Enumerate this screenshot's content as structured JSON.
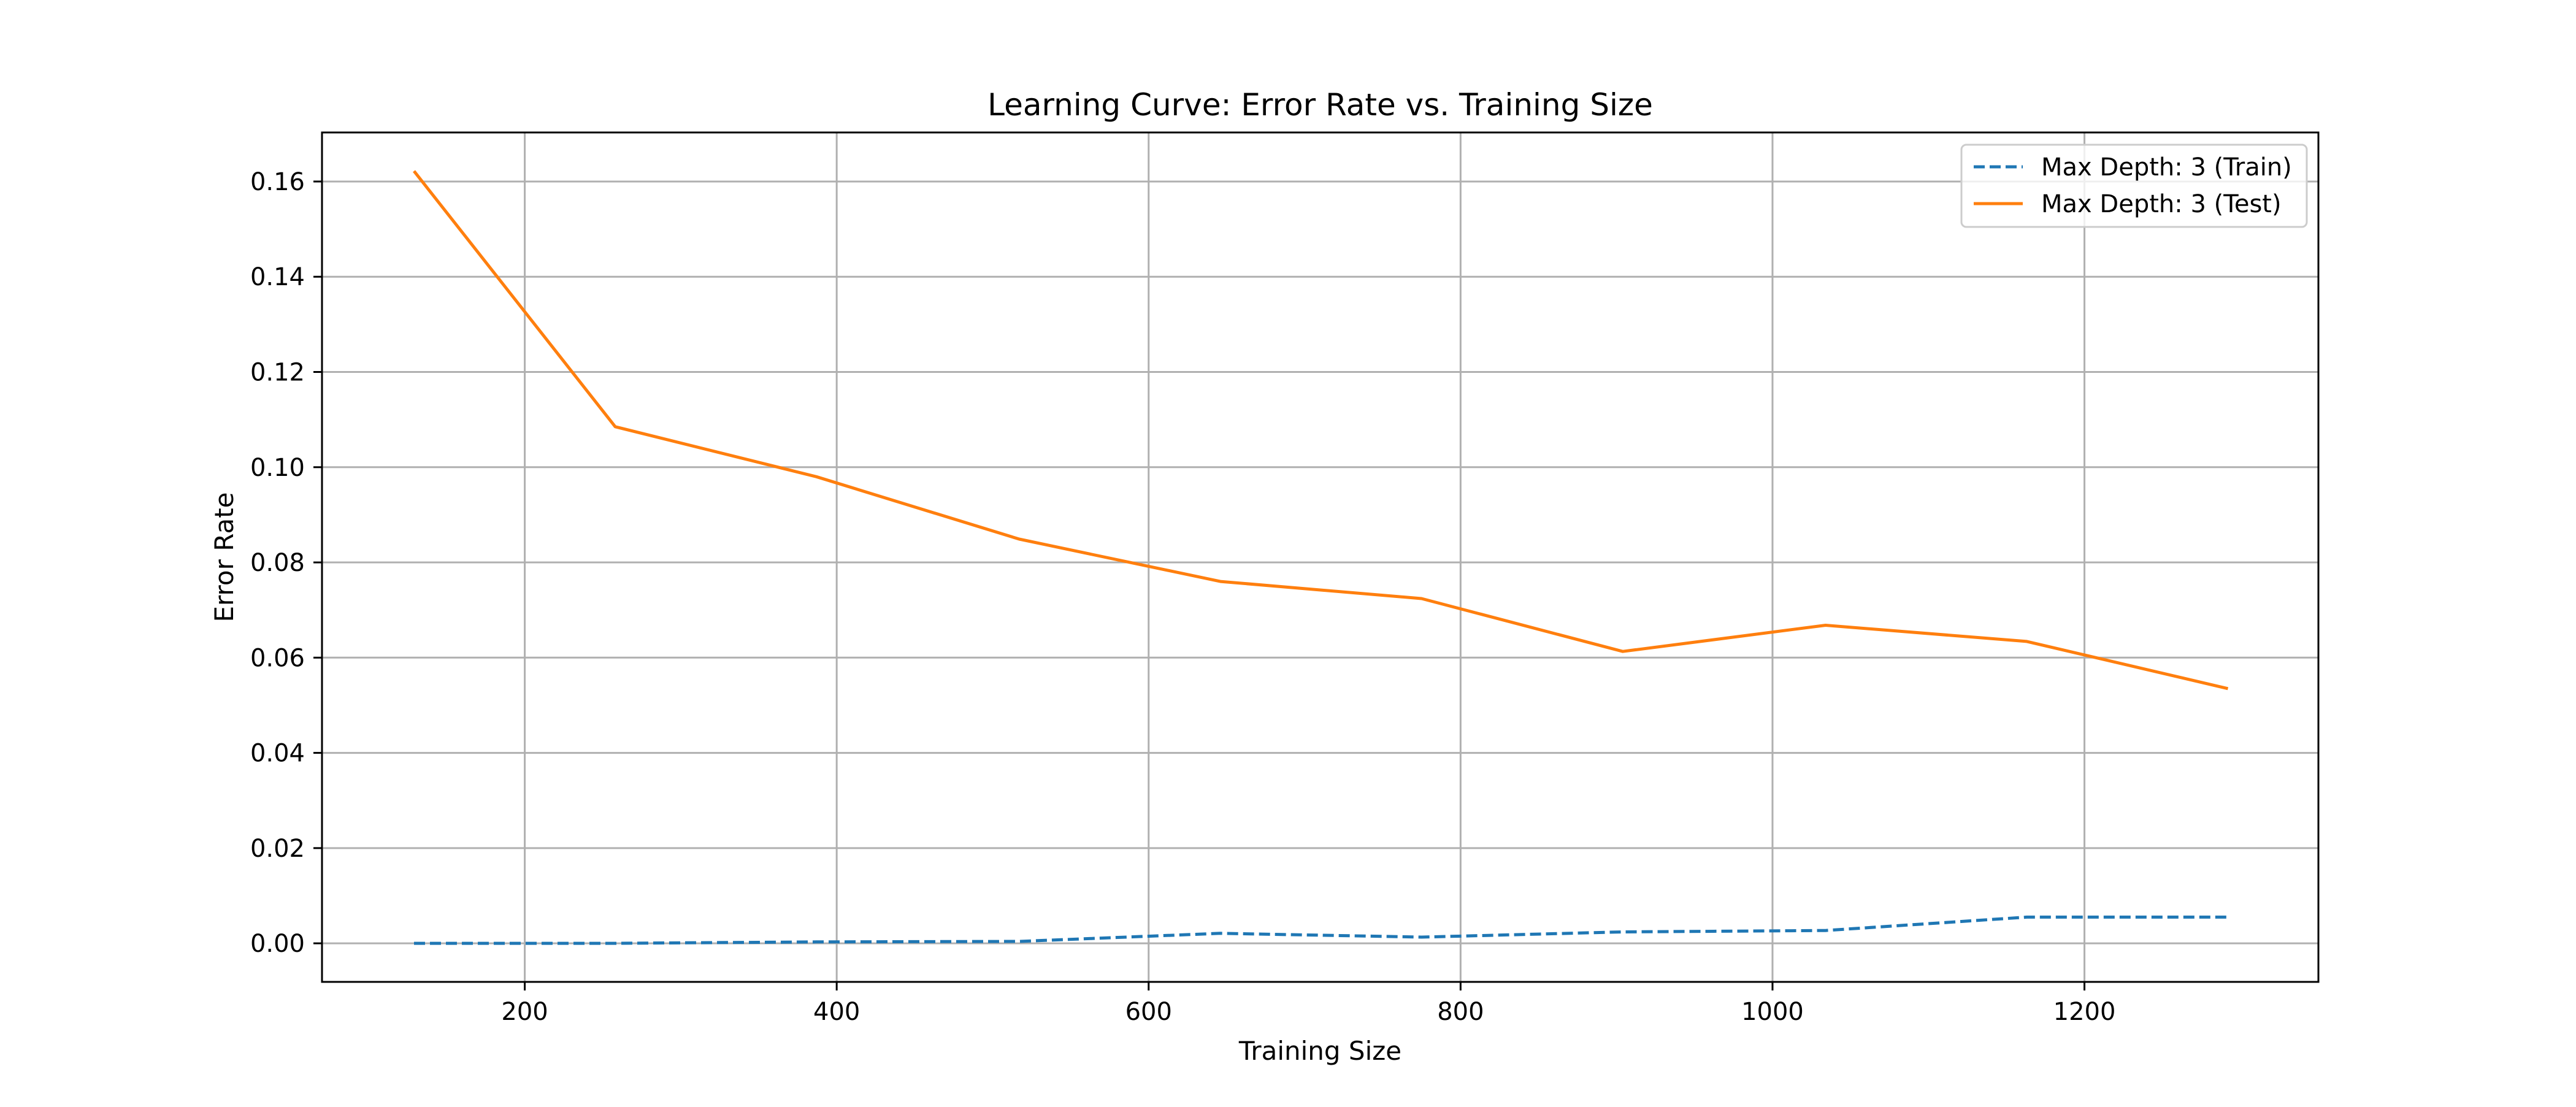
{
  "chart_data": {
    "type": "line",
    "title": "Learning Curve: Error Rate vs. Training Size",
    "xlabel": "Training Size",
    "ylabel": "Error Rate",
    "x": [
      129,
      258,
      387,
      517,
      646,
      775,
      904,
      1034,
      1163,
      1292
    ],
    "series": [
      {
        "name": "Max Depth: 3 (Train)",
        "values": [
          0.0,
          0.0,
          0.0003,
          0.0004,
          0.0021,
          0.0013,
          0.0024,
          0.0027,
          0.0055,
          0.0055
        ],
        "color": "#1f77b4",
        "style": "dashed"
      },
      {
        "name": "Max Depth: 3 (Test)",
        "values": [
          0.1622,
          0.1085,
          0.098,
          0.0849,
          0.076,
          0.0724,
          0.0613,
          0.0668,
          0.0634,
          0.0535
        ],
        "color": "#ff7f0e",
        "style": "solid"
      }
    ],
    "xlim": [
      70,
      1350
    ],
    "ylim": [
      -0.0081,
      0.1703
    ],
    "xticks": [
      200,
      400,
      600,
      800,
      1000,
      1200
    ],
    "xtick_labels": [
      "200",
      "400",
      "600",
      "800",
      "1000",
      "1200"
    ],
    "yticks": [
      0.0,
      0.02,
      0.04,
      0.06,
      0.08,
      0.1,
      0.12,
      0.14,
      0.16
    ],
    "ytick_labels": [
      "0.00",
      "0.02",
      "0.04",
      "0.06",
      "0.08",
      "0.10",
      "0.12",
      "0.14",
      "0.16"
    ],
    "grid": true,
    "legend_position": "top-right"
  }
}
